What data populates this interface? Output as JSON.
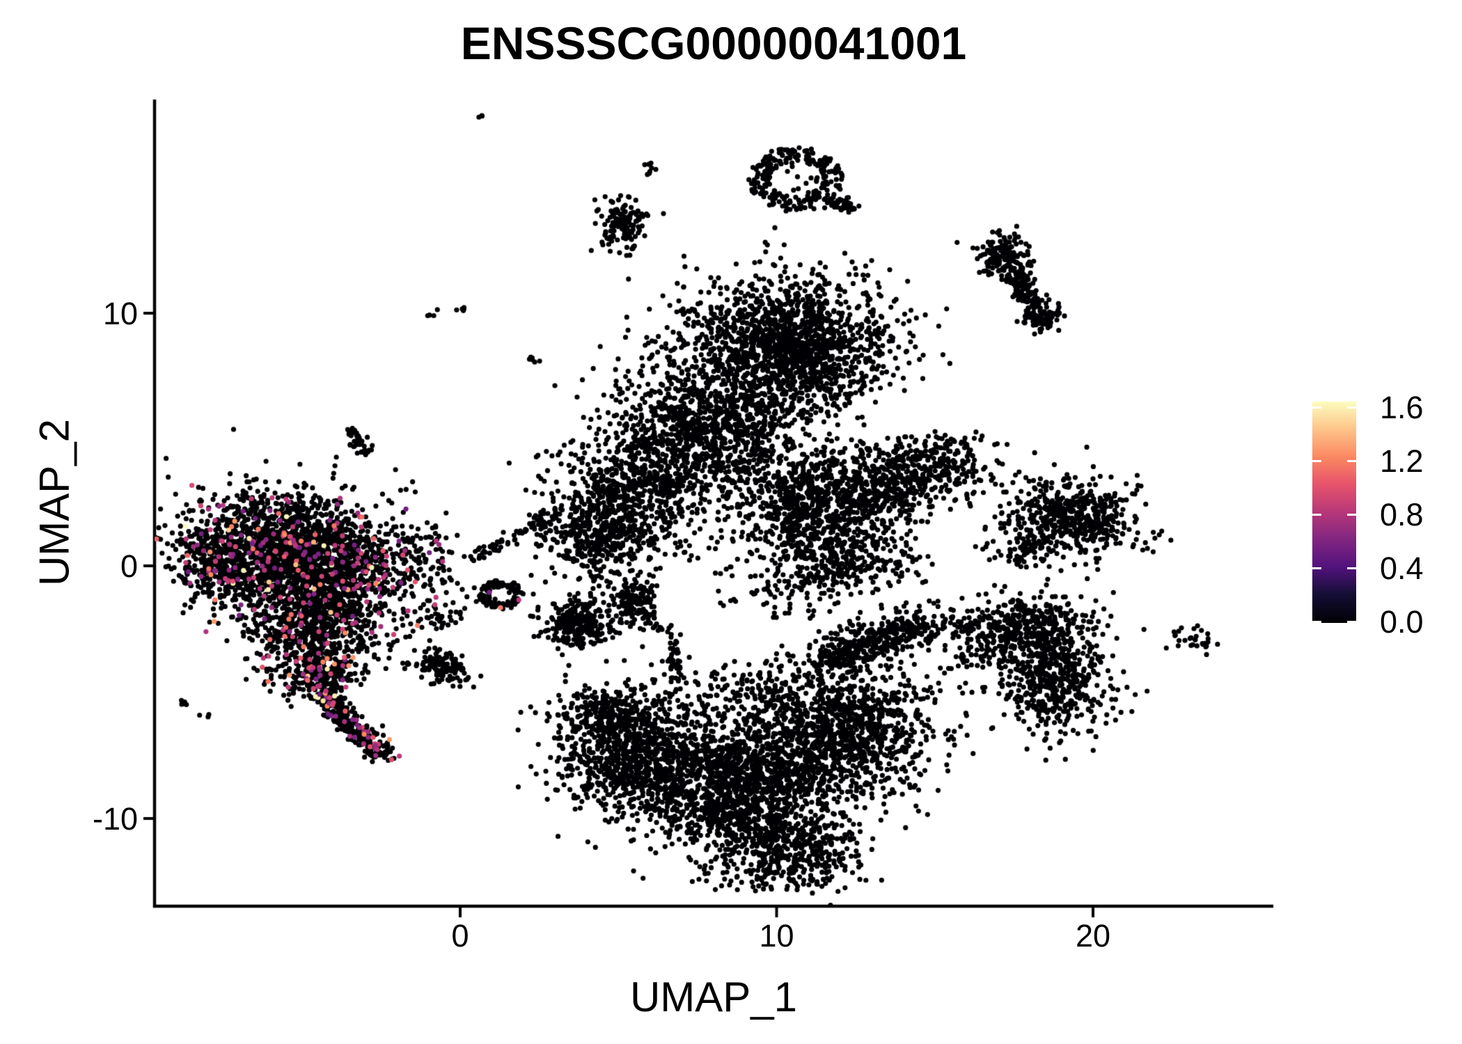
{
  "chart_data": {
    "type": "scatter",
    "title": "ENSSSCG00000041001",
    "xlabel": "UMAP_1",
    "ylabel": "UMAP_2",
    "axes": {
      "x_ticks": [
        0,
        10,
        20
      ],
      "y_ticks": [
        10,
        0,
        -10
      ],
      "xlim": [
        -9.7,
        25.7
      ],
      "ylim": [
        -13.5,
        18.5
      ],
      "grid": false
    },
    "legend": {
      "position": "right",
      "ticks": [
        "0.0",
        "0.4",
        "0.8",
        "1.2",
        "1.6"
      ],
      "tick_values": [
        0.0,
        0.4,
        0.8,
        1.2,
        1.6
      ],
      "vmin": 0.0,
      "vmax": 1.65,
      "colormap": "magma",
      "colormap_stops": [
        [
          0.0,
          "#000004"
        ],
        [
          0.13,
          "#140e36"
        ],
        [
          0.25,
          "#51127c"
        ],
        [
          0.38,
          "#822681"
        ],
        [
          0.5,
          "#b73779"
        ],
        [
          0.63,
          "#e8556b"
        ],
        [
          0.75,
          "#fb8861"
        ],
        [
          0.88,
          "#fec68a"
        ],
        [
          1.0,
          "#fcfdbf"
        ]
      ]
    },
    "point_color_zero": "#000004",
    "clusters": [
      {
        "k": "g",
        "n": 1150,
        "cx": -5.9,
        "cy": 1.0,
        "sx": 1.55,
        "sy": 1.05,
        "cf": 0.09
      },
      {
        "k": "g",
        "n": 1250,
        "cx": -4.3,
        "cy": -0.5,
        "sx": 1.5,
        "sy": 1.15,
        "cf": 0.09
      },
      {
        "k": "g",
        "n": 280,
        "cx": -7.6,
        "cy": 0.0,
        "sx": 0.7,
        "sy": 0.75,
        "cf": 0.08
      },
      {
        "k": "g",
        "n": 480,
        "cx": -4.7,
        "cy": -2.7,
        "sx": 1.05,
        "sy": 0.85,
        "cf": 0.1
      },
      {
        "k": "g",
        "n": 200,
        "cx": -4.5,
        "cy": -4.4,
        "sx": 0.62,
        "sy": 0.5,
        "cf": 0.12
      },
      {
        "k": "c",
        "n": 230,
        "x1": -4.4,
        "y1": -5.0,
        "x2": -2.7,
        "y2": -7.2,
        "w": 0.22,
        "cf": 0.13
      },
      {
        "k": "g",
        "n": 45,
        "cx": -2.5,
        "cy": -7.35,
        "sx": 0.22,
        "sy": 0.18,
        "cf": 0.15
      },
      {
        "k": "g",
        "n": 80,
        "cx": -1.35,
        "cy": 0.3,
        "sx": 0.55,
        "sy": 0.65,
        "cf": 0.06
      },
      {
        "k": "c",
        "n": 40,
        "x1": -3.45,
        "y1": 5.35,
        "x2": -2.95,
        "y2": 4.45,
        "w": 0.14,
        "cf": 0.05
      },
      {
        "k": "g",
        "n": 8,
        "cx": -6.7,
        "cy": -2.3,
        "sx": 0.25,
        "sy": 0.3
      },
      {
        "k": "g",
        "n": 5,
        "cx": -8.6,
        "cy": -5.5,
        "sx": 0.15,
        "sy": 0.1
      },
      {
        "k": "g",
        "n": 3,
        "cx": -8.15,
        "cy": -5.95,
        "sx": 0.1,
        "sy": 0.08
      },
      {
        "k": "g",
        "n": 4,
        "cx": -4.5,
        "cy": -5.45,
        "sx": 0.12,
        "sy": 0.1
      },
      {
        "k": "g",
        "n": 3,
        "cx": -4.15,
        "cy": -5.95,
        "sx": 0.1,
        "sy": 0.1
      },
      {
        "k": "c",
        "n": 40,
        "x1": -1.5,
        "y1": -2.5,
        "x2": 0.2,
        "y2": -1.5,
        "w": 0.3,
        "cf": 0.03
      },
      {
        "k": "r",
        "n": 110,
        "cx": 1.3,
        "cy": -1.15,
        "rx": 0.55,
        "ry": 0.45,
        "w": 0.3,
        "cf": 0.02
      },
      {
        "k": "c",
        "n": 70,
        "x1": 0.35,
        "y1": 0.25,
        "x2": 3.1,
        "y2": 2.1,
        "w": 0.12
      },
      {
        "k": "g",
        "n": 130,
        "cx": -0.6,
        "cy": -4.0,
        "sx": 0.45,
        "sy": 0.3,
        "rot": -25
      },
      {
        "k": "g",
        "n": 4,
        "cx": -1.6,
        "cy": -3.8,
        "sx": 0.2,
        "sy": 0.15
      },
      {
        "k": "g",
        "n": 230,
        "cx": 3.7,
        "cy": -2.3,
        "sx": 0.5,
        "sy": 0.45
      },
      {
        "k": "g",
        "n": 40,
        "cx": 3.7,
        "cy": -2.3,
        "sx": 0.85,
        "sy": 0.7
      },
      {
        "k": "g",
        "n": 150,
        "cx": 5.45,
        "cy": -1.35,
        "sx": 0.38,
        "sy": 0.45
      },
      {
        "k": "c",
        "n": 22,
        "x1": 5.75,
        "y1": -2.1,
        "x2": 6.65,
        "y2": -2.55,
        "w": 0.15
      },
      {
        "k": "c",
        "n": 40,
        "x1": 6.7,
        "y1": -2.95,
        "x2": 6.85,
        "y2": -4.55,
        "w": 0.1
      },
      {
        "k": "g",
        "n": 2,
        "cx": 6.6,
        "cy": -5.1,
        "sx": 0.05,
        "sy": 0.05
      },
      {
        "k": "g",
        "n": 1600,
        "cx": 10.4,
        "cy": 8.7,
        "sx": 1.55,
        "sy": 1.35
      },
      {
        "k": "g",
        "n": 950,
        "cx": 7.6,
        "cy": 5.6,
        "sx": 1.5,
        "sy": 1.4
      },
      {
        "k": "g",
        "n": 650,
        "cx": 5.3,
        "cy": 2.8,
        "sx": 1.25,
        "sy": 1.2
      },
      {
        "k": "g",
        "n": 300,
        "cx": 4.3,
        "cy": 1.0,
        "sx": 0.9,
        "sy": 0.8
      },
      {
        "k": "g",
        "n": 260,
        "cx": 9.6,
        "cy": 4.0,
        "sx": 1.6,
        "sy": 1.3
      },
      {
        "k": "c",
        "n": 26,
        "x1": 6.85,
        "y1": 10.15,
        "x2": 8.45,
        "y2": 9.55,
        "w": 0.18
      },
      {
        "k": "g",
        "n": 6,
        "cx": 12.9,
        "cy": 11.2,
        "sx": 0.3,
        "sy": 0.3
      },
      {
        "k": "g",
        "n": 3,
        "cx": 0.6,
        "cy": 17.8,
        "sx": 0.07,
        "sy": 0.1
      },
      {
        "k": "r",
        "n": 230,
        "cx": 10.6,
        "cy": 15.3,
        "rx": 1.15,
        "ry": 1.0,
        "w": 0.3
      },
      {
        "k": "c",
        "n": 40,
        "x1": 11.6,
        "y1": 14.55,
        "x2": 12.55,
        "y2": 14.15,
        "w": 0.13
      },
      {
        "k": "g",
        "n": 18,
        "cx": 10.7,
        "cy": 15.2,
        "sx": 0.5,
        "sy": 0.45
      },
      {
        "k": "g",
        "n": 140,
        "cx": 5.15,
        "cy": 13.55,
        "sx": 0.42,
        "sy": 0.48
      },
      {
        "k": "g",
        "n": 2,
        "cx": 5.5,
        "cy": 12.7,
        "sx": 0.05,
        "sy": 0.05
      },
      {
        "k": "g",
        "n": 9,
        "cx": 5.95,
        "cy": 15.75,
        "sx": 0.1,
        "sy": 0.22
      },
      {
        "k": "g",
        "n": 4,
        "cx": -0.9,
        "cy": 10.0,
        "sx": 0.1,
        "sy": 0.08
      },
      {
        "k": "g",
        "n": 5,
        "cx": 0.1,
        "cy": 10.15,
        "sx": 0.12,
        "sy": 0.08
      },
      {
        "k": "g",
        "n": 6,
        "cx": 2.3,
        "cy": 8.15,
        "sx": 0.12,
        "sy": 0.1
      },
      {
        "k": "g",
        "n": 130,
        "cx": 17.15,
        "cy": 12.3,
        "sx": 0.45,
        "sy": 0.4
      },
      {
        "k": "c",
        "n": 130,
        "x1": 17.3,
        "y1": 11.9,
        "x2": 18.25,
        "y2": 10.1,
        "w": 0.22
      },
      {
        "k": "g",
        "n": 70,
        "cx": 18.35,
        "cy": 9.85,
        "sx": 0.3,
        "sy": 0.3
      },
      {
        "k": "g",
        "n": 3,
        "cx": 16.6,
        "cy": 11.5,
        "sx": 0.1,
        "sy": 0.1
      },
      {
        "k": "g",
        "n": 420,
        "cx": 10.9,
        "cy": 2.1,
        "sx": 1.05,
        "sy": 0.95
      },
      {
        "k": "g",
        "n": 470,
        "cx": 12.9,
        "cy": 3.1,
        "sx": 1.25,
        "sy": 0.85
      },
      {
        "k": "g",
        "n": 240,
        "cx": 14.9,
        "cy": 4.0,
        "sx": 0.95,
        "sy": 0.6
      },
      {
        "k": "g",
        "n": 330,
        "cx": 12.1,
        "cy": 0.4,
        "sx": 1.2,
        "sy": 0.75
      },
      {
        "k": "g",
        "n": 90,
        "cx": 10.5,
        "cy": -0.9,
        "sx": 1.2,
        "sy": 0.6
      },
      {
        "k": "g",
        "n": 14,
        "cx": 15.9,
        "cy": 4.6,
        "sx": 0.45,
        "sy": 0.3
      },
      {
        "k": "g",
        "n": 520,
        "cx": 19.3,
        "cy": 1.9,
        "sx": 1.15,
        "sy": 0.75
      },
      {
        "k": "c",
        "n": 60,
        "x1": 17.5,
        "y1": 0.25,
        "x2": 18.5,
        "y2": 1.1,
        "w": 0.2
      },
      {
        "k": "g",
        "n": 8,
        "cx": 17.0,
        "cy": 0.6,
        "sx": 0.3,
        "sy": 0.25
      },
      {
        "k": "g",
        "n": 480,
        "cx": 17.9,
        "cy": -2.6,
        "sx": 1.05,
        "sy": 0.75
      },
      {
        "k": "g",
        "n": 450,
        "cx": 18.8,
        "cy": -4.7,
        "sx": 0.85,
        "sy": 0.95
      },
      {
        "k": "c",
        "n": 30,
        "x1": 15.6,
        "y1": -3.9,
        "x2": 16.8,
        "y2": -3.3,
        "w": 0.25
      },
      {
        "k": "c",
        "n": 30,
        "x1": 15.0,
        "y1": -2.3,
        "x2": 16.8,
        "y2": -2.4,
        "w": 0.2
      },
      {
        "k": "g",
        "n": 28,
        "cx": 23.2,
        "cy": -2.95,
        "sx": 0.4,
        "sy": 0.22,
        "rot": -35
      },
      {
        "k": "g",
        "n": 2,
        "cx": 22.6,
        "cy": -2.8,
        "sx": 0.06,
        "sy": 0.06
      },
      {
        "k": "g",
        "n": 850,
        "cx": 5.7,
        "cy": -7.6,
        "sx": 1.25,
        "sy": 1.15
      },
      {
        "k": "g",
        "n": 260,
        "cx": 4.7,
        "cy": -5.9,
        "sx": 0.85,
        "sy": 0.55
      },
      {
        "k": "g",
        "n": 1500,
        "cx": 9.0,
        "cy": -8.6,
        "sx": 1.75,
        "sy": 1.45
      },
      {
        "k": "g",
        "n": 430,
        "cx": 10.3,
        "cy": -11.3,
        "sx": 1.15,
        "sy": 0.75
      },
      {
        "k": "g",
        "n": 1050,
        "cx": 12.1,
        "cy": -6.6,
        "sx": 1.55,
        "sy": 1.25
      },
      {
        "k": "c",
        "n": 420,
        "x1": 11.4,
        "y1": -3.7,
        "x2": 14.9,
        "y2": -2.3,
        "w": 0.45
      },
      {
        "k": "g",
        "n": 120,
        "cx": 9.3,
        "cy": -4.9,
        "sx": 1.4,
        "sy": 0.5
      }
    ]
  }
}
